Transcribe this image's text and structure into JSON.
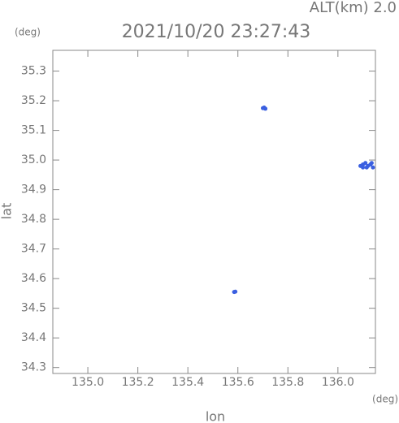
{
  "chart_data": {
    "type": "scatter",
    "title": "2021/10/20 23:27:43",
    "annotation": "ALT(km) 2.0",
    "y_unit": "(deg)",
    "x_unit": "(deg)",
    "x_label": "lon",
    "y_label": "lat",
    "color": "#3a5fe0",
    "x": [
      135.7,
      135.71,
      135.705,
      135.585,
      135.59,
      136.09,
      136.1,
      136.1,
      136.11,
      136.12,
      136.13,
      136.14,
      136.135,
      136.115
    ],
    "y": [
      35.175,
      35.173,
      35.177,
      34.555,
      34.556,
      34.98,
      34.985,
      34.975,
      34.99,
      34.98,
      34.985,
      34.975,
      34.99,
      34.975
    ],
    "xlim": [
      134.86,
      136.15
    ],
    "ylim": [
      34.28,
      35.37
    ],
    "xticks": [
      {
        "value": 135.0,
        "label": "135.0"
      },
      135.2,
      135.4,
      135.6,
      135.8,
      {
        "value": 136.0,
        "label": "136.0"
      }
    ],
    "yticks": [
      34.3,
      34.4,
      34.5,
      34.6,
      34.7,
      34.8,
      34.9,
      {
        "value": 35.0,
        "label": "35.0"
      },
      35.1,
      35.2,
      35.3
    ],
    "grid": false
  }
}
